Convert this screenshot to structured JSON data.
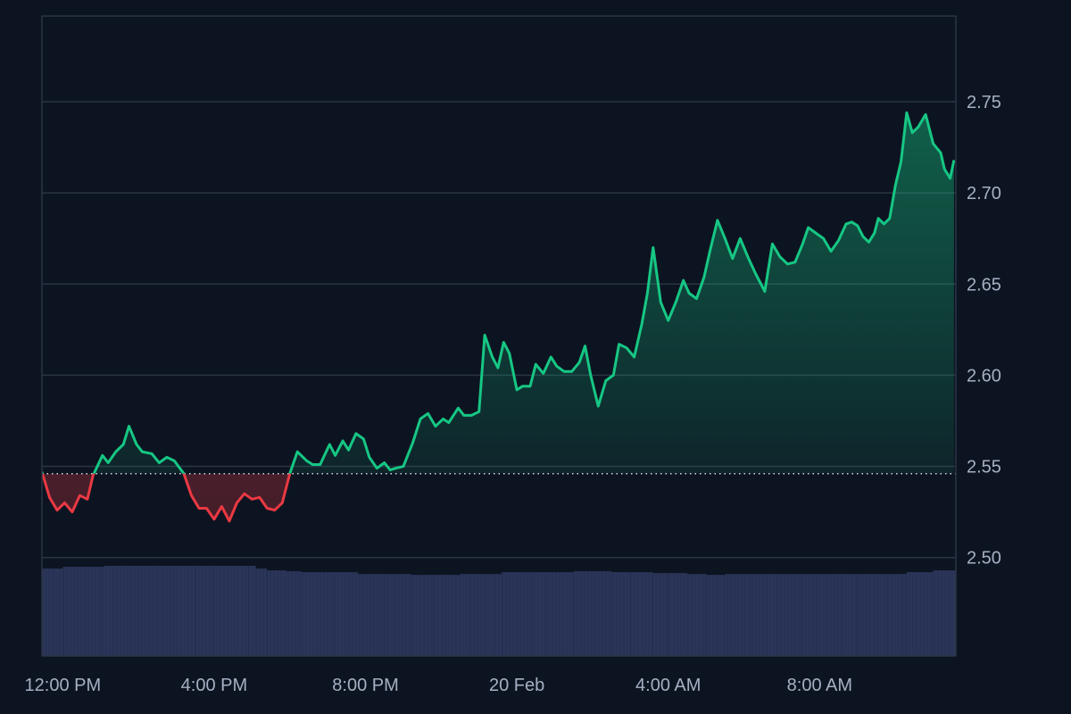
{
  "colors": {
    "background": "#0d1421",
    "grid": "#2a3444",
    "frame": "#2a3444",
    "up": "#16c784",
    "down": "#ea3943",
    "baseline": "#cfd6e4",
    "volume": "#2a3559",
    "tick_text": "#a6b0c3"
  },
  "chart_data": {
    "type": "area",
    "x_axis": {
      "tick_labels": [
        "12:00 PM",
        "4:00 PM",
        "8:00 PM",
        "20 Feb",
        "4:00 AM",
        "8:00 AM"
      ],
      "tick_hours": [
        0,
        4,
        8,
        12,
        16,
        20
      ],
      "range_hours": [
        -0.55,
        23.6
      ]
    },
    "y_axis": {
      "position": "right",
      "tick_labels": [
        "2.75",
        "2.70",
        "2.65",
        "2.60",
        "2.55",
        "2.50"
      ],
      "ticks": [
        2.75,
        2.7,
        2.65,
        2.6,
        2.55,
        2.5
      ],
      "range": [
        2.446,
        2.797
      ]
    },
    "baseline": 2.546,
    "grid": true,
    "price_series": {
      "x_hours": [
        -0.55,
        -0.35,
        -0.15,
        0.05,
        0.25,
        0.45,
        0.65,
        0.8,
        1.05,
        1.2,
        1.4,
        1.6,
        1.75,
        1.95,
        2.1,
        2.35,
        2.55,
        2.75,
        2.95,
        3.2,
        3.4,
        3.6,
        3.8,
        4.0,
        4.2,
        4.4,
        4.6,
        4.8,
        5.0,
        5.2,
        5.4,
        5.6,
        5.8,
        6.0,
        6.2,
        6.45,
        6.6,
        6.8,
        7.05,
        7.2,
        7.4,
        7.55,
        7.75,
        7.95,
        8.1,
        8.3,
        8.5,
        8.65,
        8.8,
        9.0,
        9.25,
        9.45,
        9.65,
        9.85,
        10.05,
        10.2,
        10.45,
        10.6,
        10.8,
        11.0,
        11.15,
        11.35,
        11.5,
        11.65,
        11.8,
        12.0,
        12.15,
        12.35,
        12.5,
        12.7,
        12.9,
        13.05,
        13.25,
        13.45,
        13.65,
        13.8,
        13.95,
        14.15,
        14.35,
        14.55,
        14.7,
        14.9,
        15.1,
        15.3,
        15.45,
        15.6,
        15.8,
        16.0,
        16.2,
        16.4,
        16.55,
        16.75,
        16.95,
        17.1,
        17.3,
        17.5,
        17.7,
        17.9,
        18.1,
        18.3,
        18.55,
        18.75,
        18.95,
        19.15,
        19.35,
        19.55,
        19.7,
        19.9,
        20.1,
        20.3,
        20.5,
        20.7,
        20.85,
        21.0,
        21.15,
        21.3,
        21.45,
        21.55,
        21.7,
        21.85,
        22.0,
        22.15,
        22.3,
        22.45,
        22.6,
        22.8,
        23.0,
        23.2,
        23.3,
        23.45,
        23.55
      ],
      "y_values": [
        2.547,
        2.533,
        2.526,
        2.53,
        2.525,
        2.534,
        2.532,
        2.545,
        2.556,
        2.552,
        2.558,
        2.562,
        2.572,
        2.562,
        2.558,
        2.557,
        2.552,
        2.555,
        2.553,
        2.546,
        2.534,
        2.527,
        2.527,
        2.521,
        2.528,
        2.52,
        2.53,
        2.535,
        2.532,
        2.533,
        2.527,
        2.526,
        2.53,
        2.546,
        2.558,
        2.553,
        2.551,
        2.551,
        2.562,
        2.556,
        2.564,
        2.559,
        2.568,
        2.565,
        2.555,
        2.549,
        2.552,
        2.548,
        2.549,
        2.55,
        2.563,
        2.576,
        2.579,
        2.572,
        2.576,
        2.574,
        2.582,
        2.578,
        2.578,
        2.58,
        2.622,
        2.61,
        2.604,
        2.618,
        2.612,
        2.592,
        2.594,
        2.594,
        2.606,
        2.601,
        2.61,
        2.605,
        2.602,
        2.602,
        2.607,
        2.616,
        2.6,
        2.583,
        2.597,
        2.6,
        2.617,
        2.615,
        2.61,
        2.628,
        2.645,
        2.67,
        2.64,
        2.63,
        2.64,
        2.652,
        2.645,
        2.642,
        2.654,
        2.668,
        2.685,
        2.675,
        2.664,
        2.675,
        2.665,
        2.656,
        2.646,
        2.672,
        2.665,
        2.661,
        2.662,
        2.672,
        2.681,
        2.678,
        2.675,
        2.668,
        2.674,
        2.683,
        2.684,
        2.682,
        2.676,
        2.673,
        2.678,
        2.686,
        2.683,
        2.686,
        2.704,
        2.717,
        2.744,
        2.733,
        2.736,
        2.743,
        2.727,
        2.722,
        2.713,
        2.708,
        2.718
      ]
    },
    "volume_series": {
      "x_hours": [
        -0.55,
        -0.1,
        0.0,
        1.0,
        1.1,
        2.5,
        3.5,
        4.0,
        4.9,
        5.1,
        5.4,
        5.9,
        6.3,
        7.8,
        8.6,
        9.2,
        9.8,
        10.5,
        11.4,
        11.6,
        12.4,
        13.5,
        14.5,
        15.0,
        15.6,
        16.0,
        16.5,
        17.0,
        17.5,
        18.0,
        19.5,
        21.0,
        21.8,
        22.3,
        23.0,
        23.6
      ],
      "heights": [
        0.97,
        0.97,
        0.99,
        0.99,
        1.0,
        1.0,
        1.0,
        1.0,
        1.0,
        0.97,
        0.95,
        0.94,
        0.93,
        0.91,
        0.91,
        0.9,
        0.9,
        0.91,
        0.91,
        0.93,
        0.93,
        0.94,
        0.93,
        0.93,
        0.92,
        0.92,
        0.91,
        0.9,
        0.91,
        0.91,
        0.91,
        0.91,
        0.91,
        0.93,
        0.95,
        0.95
      ]
    }
  }
}
